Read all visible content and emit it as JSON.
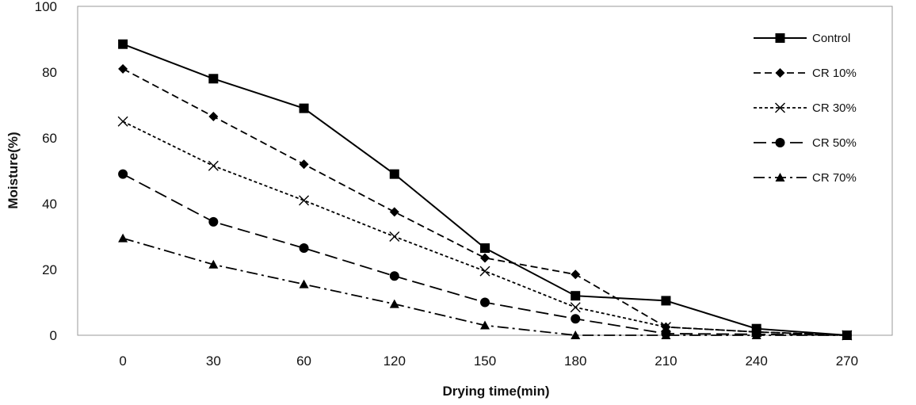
{
  "chart_data": {
    "type": "line",
    "title": "",
    "xlabel": "Drying time(min)",
    "ylabel": "Moisture(%)",
    "categories": [
      "0",
      "30",
      "60",
      "120",
      "150",
      "180",
      "210",
      "240",
      "270"
    ],
    "ylim": [
      0,
      100
    ],
    "yticks": [
      "0",
      "20",
      "40",
      "60",
      "80",
      "100"
    ],
    "grid": false,
    "legend_position": "top-right",
    "series": [
      {
        "name": "Control",
        "marker": "square",
        "dash": "solid",
        "values": [
          88.5,
          78,
          69,
          49,
          26.5,
          12,
          10.5,
          2,
          0
        ]
      },
      {
        "name": "CR 10%",
        "marker": "diamond",
        "dash": "dashed",
        "values": [
          81,
          66.5,
          52,
          37.5,
          23.5,
          18.5,
          2.5,
          1,
          0
        ]
      },
      {
        "name": "CR 30%",
        "marker": "x",
        "dash": "dotted",
        "values": [
          65,
          51.5,
          41,
          30,
          19.5,
          8.5,
          2.5,
          1,
          0
        ]
      },
      {
        "name": "CR 50%",
        "marker": "circle",
        "dash": "long-dash",
        "values": [
          49,
          34.5,
          26.5,
          18,
          10,
          5,
          0.5,
          0.3,
          0
        ]
      },
      {
        "name": "CR 70%",
        "marker": "triangle",
        "dash": "dash-dot",
        "values": [
          29.5,
          21.5,
          15.5,
          9.5,
          3,
          0,
          0,
          0,
          0
        ]
      }
    ],
    "line_color": "#000000"
  }
}
